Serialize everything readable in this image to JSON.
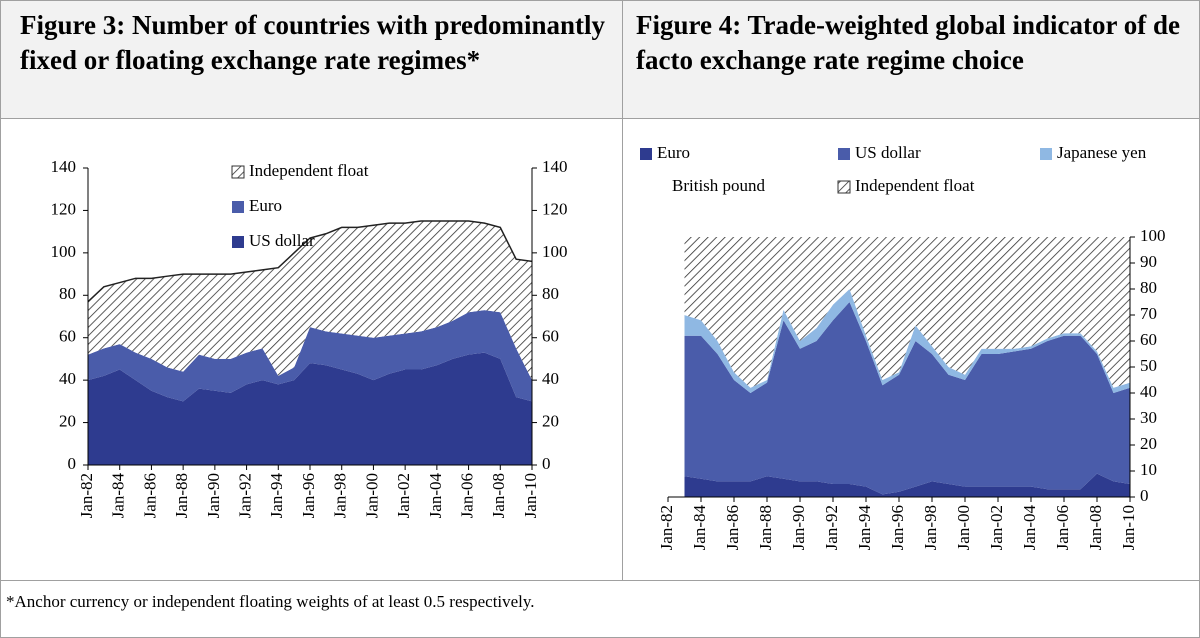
{
  "chart_data": [
    {
      "type": "stacked-area",
      "title": "Figure 3: Number of countries with predominantly fixed or floating exchange rate regimes*",
      "categories": [
        "Jan-82",
        null,
        "Jan-84",
        null,
        "Jan-86",
        null,
        "Jan-88",
        null,
        "Jan-90",
        null,
        "Jan-92",
        null,
        "Jan-94",
        null,
        "Jan-96",
        null,
        "Jan-98",
        null,
        "Jan-00",
        null,
        "Jan-02",
        null,
        "Jan-04",
        null,
        "Jan-06",
        null,
        "Jan-08",
        null,
        "Jan-10"
      ],
      "series": [
        {
          "name": "US dollar",
          "color": "#2e3b8f",
          "values": [
            40,
            42,
            45,
            40,
            35,
            32,
            30,
            36,
            35,
            34,
            38,
            40,
            38,
            40,
            48,
            47,
            45,
            43,
            40,
            43,
            45,
            45,
            47,
            50,
            52,
            53,
            50,
            32,
            30
          ]
        },
        {
          "name": "Euro",
          "color": "#4a5caa",
          "values": [
            12,
            13,
            12,
            13,
            15,
            14,
            14,
            16,
            15,
            16,
            15,
            15,
            4,
            6,
            17,
            16,
            17,
            18,
            20,
            18,
            17,
            18,
            18,
            18,
            20,
            20,
            22,
            23,
            10
          ]
        },
        {
          "name": "Independent float",
          "color": "#333333",
          "hatched": true,
          "values": [
            25,
            29,
            29,
            35,
            38,
            43,
            46,
            38,
            40,
            40,
            38,
            37,
            51,
            54,
            42,
            46,
            50,
            51,
            53,
            53,
            52,
            52,
            50,
            47,
            43,
            41,
            40,
            42,
            56
          ]
        }
      ],
      "ylim": [
        0,
        140
      ],
      "yticks": [
        0,
        20,
        40,
        60,
        80,
        100,
        120,
        140
      ]
    },
    {
      "type": "stacked-area",
      "title": "Figure 4: Trade-weighted global indicator of de facto exchange rate regime choice",
      "categories": [
        "Jan-82",
        null,
        "Jan-84",
        null,
        "Jan-86",
        null,
        "Jan-88",
        null,
        "Jan-90",
        null,
        "Jan-92",
        null,
        "Jan-94",
        null,
        "Jan-96",
        null,
        "Jan-98",
        null,
        "Jan-00",
        null,
        "Jan-02",
        null,
        "Jan-04",
        null,
        "Jan-06",
        null,
        "Jan-08",
        null,
        "Jan-10"
      ],
      "series": [
        {
          "name": "Euro",
          "color": "#2e3b8f",
          "values": [
            null,
            8,
            7,
            6,
            6,
            6,
            8,
            7,
            6,
            6,
            5,
            5,
            4,
            1,
            2,
            4,
            6,
            5,
            4,
            4,
            4,
            4,
            4,
            3,
            3,
            3,
            9,
            6,
            5
          ]
        },
        {
          "name": "US dollar",
          "color": "#4a5caa",
          "values": [
            null,
            54,
            55,
            49,
            39,
            34,
            36,
            61,
            51,
            54,
            63,
            70,
            56,
            42,
            45,
            56,
            49,
            42,
            41,
            51,
            51,
            52,
            53,
            57,
            59,
            59,
            46,
            34,
            37
          ]
        },
        {
          "name": "Japanese yen",
          "color": "#8fb8e3",
          "values": [
            null,
            8,
            6,
            5,
            3,
            2,
            1,
            4,
            3,
            5,
            6,
            5,
            2,
            2,
            1,
            6,
            3,
            3,
            2,
            2,
            2,
            1,
            1,
            1,
            1,
            1,
            1,
            2,
            2
          ]
        },
        {
          "name": "British pound",
          "color": "#ffffff",
          "values": [
            null,
            0,
            0,
            0,
            0,
            0,
            0,
            0,
            0,
            0,
            0,
            0,
            0,
            0,
            0,
            0,
            0,
            0,
            0,
            0,
            0,
            0,
            0,
            0,
            0,
            0,
            0,
            0,
            0
          ]
        },
        {
          "name": "Independent float",
          "color": "#333333",
          "hatched": true,
          "values": [
            null,
            30,
            32,
            40,
            52,
            58,
            55,
            28,
            40,
            35,
            26,
            20,
            38,
            55,
            52,
            34,
            42,
            50,
            53,
            43,
            43,
            43,
            42,
            39,
            37,
            37,
            44,
            58,
            56
          ]
        }
      ],
      "ylim": [
        0,
        100
      ],
      "yticks": [
        0,
        10,
        20,
        30,
        40,
        50,
        60,
        70,
        80,
        90,
        100
      ]
    }
  ],
  "footnote": "*Anchor currency or independent floating weights of at least 0.5 respectively."
}
